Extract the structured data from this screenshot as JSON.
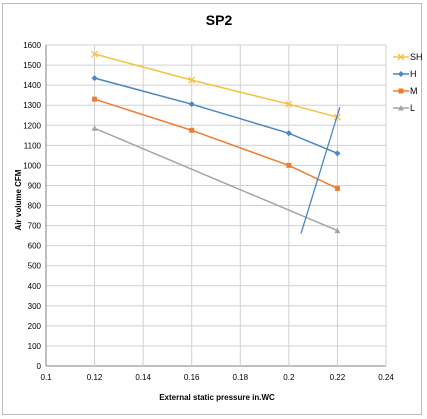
{
  "chart_data": {
    "type": "line",
    "title": "SP2",
    "xlabel": "External static pressure  in.WC",
    "ylabel": "Air volume  CFM",
    "xlim": [
      0.1,
      0.24
    ],
    "ylim": [
      0,
      1600
    ],
    "x_ticks": [
      "0.1",
      "0.12",
      "0.14",
      "0.16",
      "0.18",
      "0.2",
      "0.22",
      "0.24"
    ],
    "y_ticks": [
      "0",
      "100",
      "200",
      "300",
      "400",
      "500",
      "600",
      "700",
      "800",
      "900",
      "1000",
      "1100",
      "1200",
      "1300",
      "1400",
      "1500",
      "1600"
    ],
    "grid": true,
    "legend_position": "right",
    "series": [
      {
        "name": "SH",
        "color": "#f5c242",
        "marker": "x",
        "x": [
          0.12,
          0.16,
          0.2,
          0.22
        ],
        "y": [
          1555,
          1425,
          1305,
          1240
        ]
      },
      {
        "name": "H",
        "color": "#4a86c5",
        "marker": "diamond",
        "x": [
          0.12,
          0.16,
          0.2,
          0.22
        ],
        "y": [
          1435,
          1305,
          1160,
          1060
        ]
      },
      {
        "name": "M",
        "color": "#ed7d31",
        "marker": "square",
        "x": [
          0.12,
          0.16,
          0.2,
          0.22
        ],
        "y": [
          1330,
          1175,
          1000,
          885
        ]
      },
      {
        "name": "L",
        "color": "#a5a5a5",
        "marker": "triangle",
        "x": [
          0.12,
          0.22
        ],
        "y": [
          1185,
          675
        ]
      }
    ],
    "annotations": [
      {
        "type": "line",
        "color": "#4a86c5",
        "x": [
          0.205,
          0.221
        ],
        "y": [
          660,
          1290
        ]
      }
    ]
  }
}
